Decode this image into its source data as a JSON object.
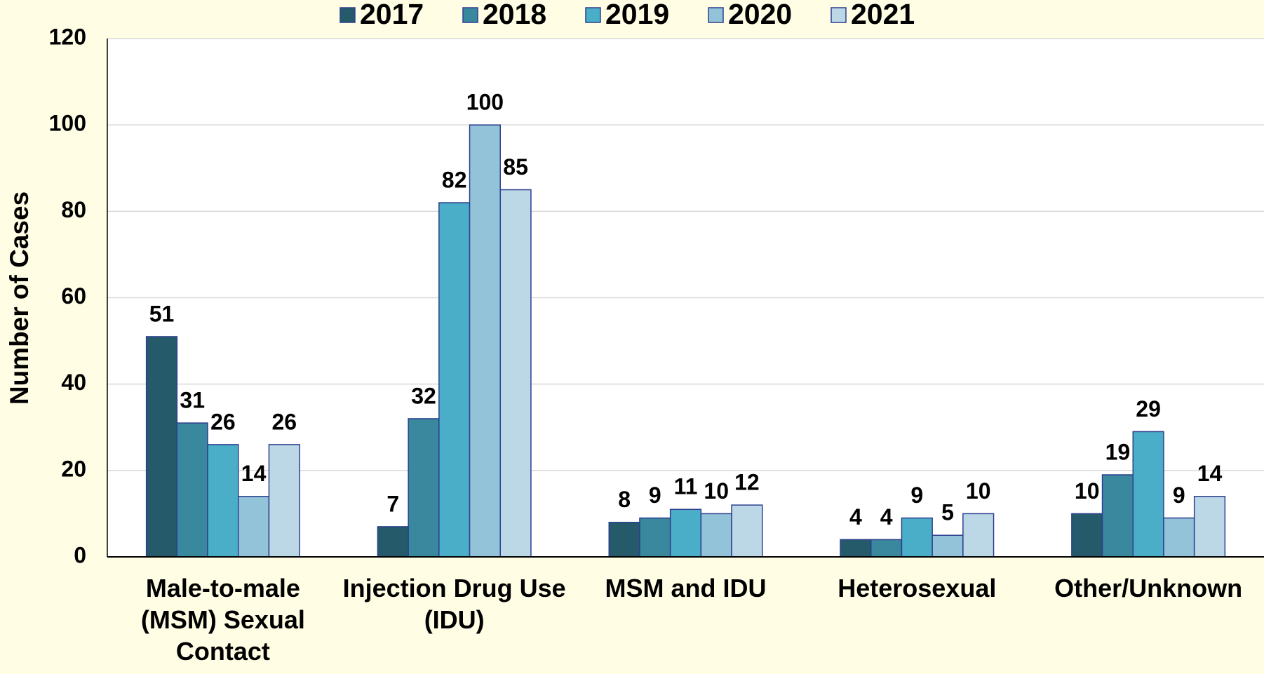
{
  "chart_data": {
    "type": "bar",
    "y_label": "Number of Cases",
    "categories": [
      "Male-to-male (MSM) Sexual Contact",
      "Injection Drug Use (IDU)",
      "MSM and IDU",
      "Heterosexual",
      "Other/Unknown"
    ],
    "series": [
      {
        "name": "2017",
        "color": "#245a6a",
        "values": [
          51,
          7,
          8,
          4,
          10
        ]
      },
      {
        "name": "2018",
        "color": "#3a889e",
        "values": [
          31,
          32,
          9,
          4,
          19
        ]
      },
      {
        "name": "2019",
        "color": "#4aaec8",
        "values": [
          26,
          82,
          11,
          9,
          29
        ]
      },
      {
        "name": "2020",
        "color": "#92c3d8",
        "values": [
          14,
          100,
          10,
          5,
          9
        ]
      },
      {
        "name": "2021",
        "color": "#bcd8e6",
        "values": [
          26,
          85,
          12,
          10,
          14
        ]
      }
    ],
    "ylim": [
      0,
      120
    ],
    "yticks": [
      0,
      20,
      40,
      60,
      80,
      100,
      120
    ],
    "grid": true,
    "legend": "top"
  }
}
